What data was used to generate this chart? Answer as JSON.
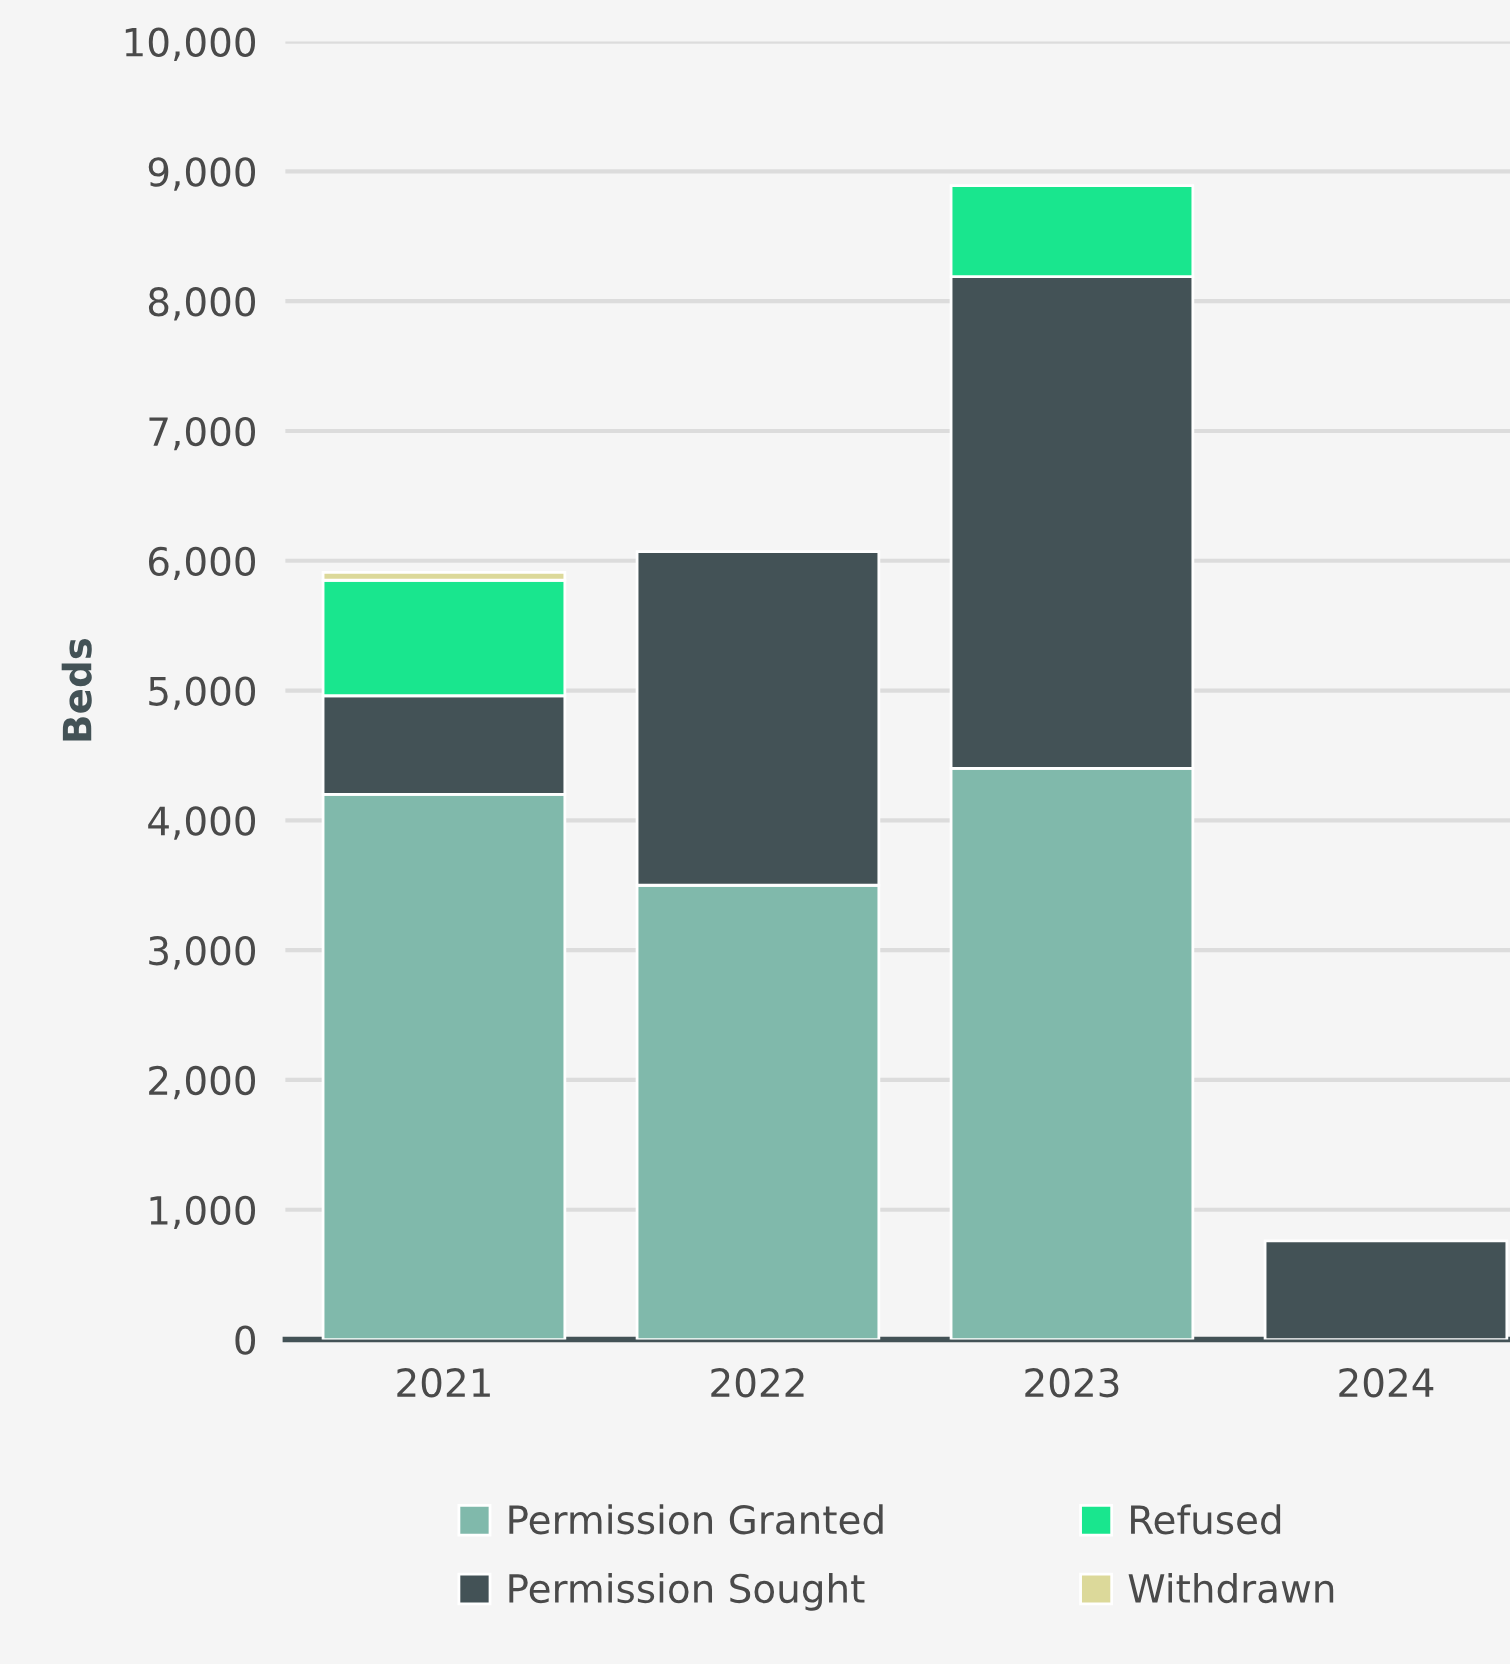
{
  "chart_data": {
    "type": "bar",
    "stacked": true,
    "ylabel": "Beds",
    "categories": [
      "2021",
      "2022",
      "2023",
      "2024"
    ],
    "series": [
      {
        "name": "Permission Granted",
        "color": "#80b9ab",
        "values": [
          4200,
          3500,
          4400,
          null
        ]
      },
      {
        "name": "Permission Sought",
        "color": "#435256",
        "values": [
          760,
          2570,
          3790,
          760
        ]
      },
      {
        "name": "Refused",
        "color": "#19e68e",
        "values": [
          890,
          null,
          700,
          null
        ]
      },
      {
        "name": "Withdrawn",
        "color": "#dcd99a",
        "values": [
          60,
          null,
          null,
          null
        ]
      }
    ],
    "ylim": [
      0,
      10000
    ],
    "yticks": [
      {
        "value": 0,
        "label": "0"
      },
      {
        "value": 1000,
        "label": "1,000"
      },
      {
        "value": 2000,
        "label": "2,000"
      },
      {
        "value": 3000,
        "label": "3,000"
      },
      {
        "value": 4000,
        "label": "4,000"
      },
      {
        "value": 5000,
        "label": "5,000"
      },
      {
        "value": 6000,
        "label": "6,000"
      },
      {
        "value": 7000,
        "label": "7,000"
      },
      {
        "value": 8000,
        "label": "8,000"
      },
      {
        "value": 9000,
        "label": "9,000"
      },
      {
        "value": 10000,
        "label": "10,000"
      }
    ],
    "grid": "y",
    "legend": "bottom"
  }
}
